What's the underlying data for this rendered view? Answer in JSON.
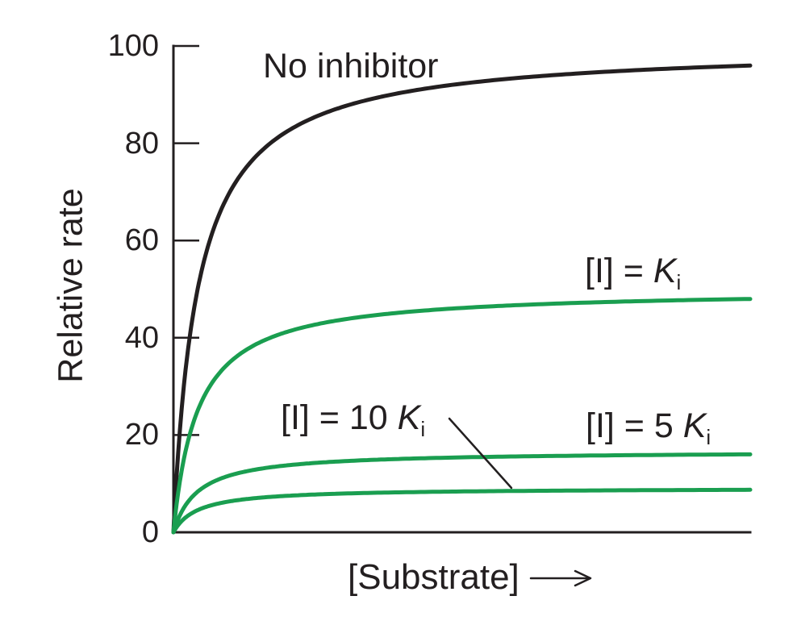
{
  "chart_data": {
    "type": "line",
    "title": "",
    "xlabel": "[Substrate]",
    "ylabel": "Relative rate",
    "x_axis_annotation": "unlabeled axis, arrow indicates increasing substrate concentration",
    "ylim": [
      0,
      100
    ],
    "yticks": [
      0,
      20,
      40,
      60,
      80,
      100
    ],
    "grid": false,
    "legend_position": "inline-annotations",
    "axis_color": "#231f20",
    "curve_color_green": "#1a9e50",
    "curve_model": "v = vmax * x / (km + x), Michaelis-Menten with noncompetitive inhibition; x normalized 0-1 across axis",
    "series": [
      {
        "id": "no-inhibitor",
        "name": "No inhibitor",
        "label_parts": {
          "prefix": "No inhibitor",
          "symbol": "",
          "sub": ""
        },
        "color": "#231f20",
        "vmax": 100,
        "km": 0.042,
        "value_at_right_edge": 96
      },
      {
        "id": "ki",
        "name": "[I] = Ki",
        "label_parts": {
          "prefix": "[I] = ",
          "symbol": "K",
          "sub": "i"
        },
        "color": "#1a9e50",
        "vmax": 50,
        "km": 0.042,
        "value_at_right_edge": 48
      },
      {
        "id": "5ki",
        "name": "[I] = 5 Ki",
        "label_parts": {
          "prefix": "[I] = 5 ",
          "symbol": "K",
          "sub": "i"
        },
        "color": "#1a9e50",
        "vmax": 16.7,
        "km": 0.042,
        "value_at_right_edge": 16
      },
      {
        "id": "10ki",
        "name": "[I] = 10 Ki",
        "label_parts": {
          "prefix": "[I] = 10 ",
          "symbol": "K",
          "sub": "i"
        },
        "color": "#1a9e50",
        "vmax": 9.1,
        "km": 0.042,
        "value_at_right_edge": 8.7
      }
    ],
    "callout": {
      "from_label": "[I] = 10 Ki",
      "points_to": "plateau of the [I] = 10 Ki curve"
    },
    "icons": {
      "x_axis_arrow": "right-arrow"
    }
  }
}
